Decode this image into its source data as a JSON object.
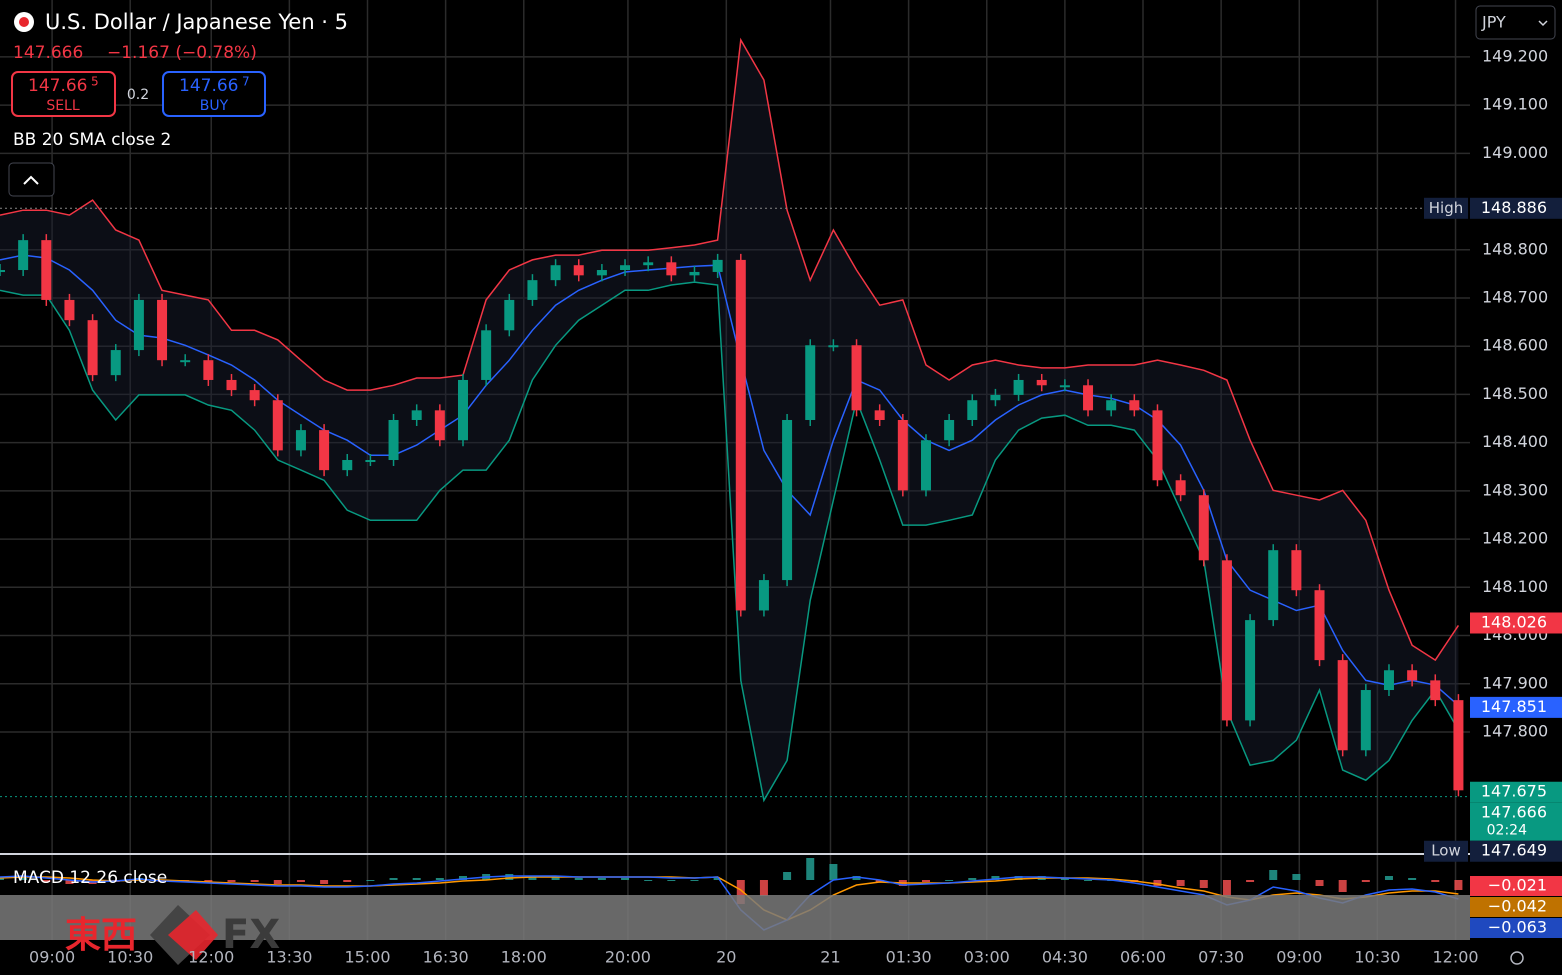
{
  "header": {
    "title": "U.S. Dollar / Japanese Yen · 5",
    "last": "147.666",
    "change": "−1.167 (−0.78%)",
    "sell": {
      "price": "147.66",
      "pip": "5",
      "label": "SELL"
    },
    "spread": "0.2",
    "buy": {
      "price": "147.66",
      "pip": "7",
      "label": "BUY"
    },
    "indicator": "BB 20 SMA close 2",
    "currency": "JPY"
  },
  "chart_data": {
    "type": "candlestick",
    "up_color": "#089981",
    "down_color": "#f23645",
    "grid": true,
    "x": [
      0,
      8,
      16,
      24,
      32,
      40,
      48,
      56,
      64,
      72,
      80,
      88,
      96,
      104,
      112,
      120,
      128,
      136,
      144,
      152,
      160,
      168,
      176,
      184,
      192,
      200,
      208,
      216,
      224,
      232,
      240,
      248,
      256,
      264,
      272,
      280,
      288,
      296,
      304,
      312,
      320,
      328,
      336,
      344,
      352,
      360,
      368,
      376,
      384,
      392,
      400,
      408,
      416,
      424,
      432,
      440,
      448,
      456,
      464,
      472,
      480,
      488,
      496,
      504
    ],
    "close": [
      148.758,
      148.82,
      148.696,
      148.654,
      148.54,
      148.592,
      148.696,
      148.571,
      148.571,
      148.53,
      148.509,
      148.488,
      148.384,
      148.426,
      148.343,
      148.364,
      148.364,
      148.447,
      148.467,
      148.405,
      148.53,
      148.633,
      148.696,
      148.737,
      148.768,
      148.747,
      148.758,
      148.768,
      148.774,
      148.747,
      148.754,
      148.779,
      148.052,
      148.115,
      148.447,
      148.602,
      148.602,
      148.467,
      148.447,
      148.301,
      148.405,
      148.447,
      148.488,
      148.499,
      148.53,
      148.519,
      148.519,
      148.467,
      148.488,
      148.467,
      148.322,
      148.291,
      148.156,
      147.824,
      148.032,
      148.177,
      148.094,
      147.949,
      147.762,
      147.887,
      147.928,
      147.907,
      147.866,
      147.679
    ],
    "bb_upper": [
      148.872,
      148.882,
      148.882,
      148.872,
      148.903,
      148.841,
      148.82,
      148.716,
      148.706,
      148.696,
      148.633,
      148.633,
      148.613,
      148.571,
      148.53,
      148.509,
      148.509,
      148.519,
      148.534,
      148.534,
      148.54,
      148.696,
      148.758,
      148.779,
      148.789,
      148.789,
      148.799,
      148.799,
      148.799,
      148.804,
      148.81,
      148.82,
      149.235,
      149.152,
      148.882,
      148.737,
      148.841,
      148.758,
      148.685,
      148.696,
      148.561,
      148.53,
      148.561,
      148.571,
      148.561,
      148.555,
      148.555,
      148.561,
      148.561,
      148.561,
      148.571,
      148.561,
      148.55,
      148.53,
      148.405,
      148.301,
      148.291,
      148.281,
      148.301,
      148.239,
      148.094,
      147.98,
      147.949,
      148.021
    ],
    "bb_basis": [
      148.779,
      148.789,
      148.783,
      148.758,
      148.716,
      148.654,
      148.623,
      148.617,
      148.602,
      148.582,
      148.561,
      148.53,
      148.488,
      148.457,
      148.426,
      148.405,
      148.374,
      148.374,
      148.395,
      148.426,
      148.457,
      148.519,
      148.571,
      148.633,
      148.685,
      148.716,
      148.737,
      148.754,
      148.758,
      148.762,
      148.766,
      148.768,
      148.571,
      148.384,
      148.301,
      148.25,
      148.405,
      148.53,
      148.509,
      148.447,
      148.405,
      148.384,
      148.405,
      148.447,
      148.478,
      148.499,
      148.509,
      148.499,
      148.492,
      148.478,
      148.447,
      148.395,
      148.301,
      148.156,
      148.094,
      148.073,
      148.052,
      148.063,
      147.969,
      147.907,
      147.897,
      147.907,
      147.897,
      147.855
    ],
    "bb_lower": [
      148.716,
      148.706,
      148.706,
      148.633,
      148.509,
      148.447,
      148.499,
      148.499,
      148.499,
      148.478,
      148.467,
      148.426,
      148.364,
      148.343,
      148.322,
      148.26,
      148.239,
      148.239,
      148.239,
      148.301,
      148.343,
      148.343,
      148.405,
      148.53,
      148.602,
      148.654,
      148.685,
      148.716,
      148.716,
      148.727,
      148.733,
      148.727,
      147.907,
      147.658,
      147.741,
      148.073,
      148.281,
      148.488,
      148.364,
      148.229,
      148.229,
      148.239,
      148.25,
      148.364,
      148.426,
      148.451,
      148.457,
      148.436,
      148.436,
      148.426,
      148.364,
      148.26,
      148.156,
      147.845,
      147.731,
      147.741,
      147.783,
      147.887,
      147.721,
      147.7,
      147.741,
      147.824,
      147.887,
      147.804
    ],
    "upper_color": "#f23645",
    "basis_color": "#2962ff",
    "lower_color": "#089981",
    "xlim": [
      0,
      508
    ],
    "ylim": [
      147.549,
      149.318
    ],
    "yticks": [
      {
        "value": 149.2,
        "label": "149.200"
      },
      {
        "value": 149.1,
        "label": "149.100"
      },
      {
        "value": 149.0,
        "label": "149.000"
      },
      {
        "value": 148.8,
        "label": "148.800"
      },
      {
        "value": 148.7,
        "label": "148.700"
      },
      {
        "value": 148.6,
        "label": "148.600"
      },
      {
        "value": 148.5,
        "label": "148.500"
      },
      {
        "value": 148.4,
        "label": "148.400"
      },
      {
        "value": 148.3,
        "label": "148.300"
      },
      {
        "value": 148.2,
        "label": "148.200"
      },
      {
        "value": 148.1,
        "label": "148.100"
      },
      {
        "value": 148.0,
        "label": "148.000"
      },
      {
        "value": 147.9,
        "label": "147.900"
      },
      {
        "value": 147.8,
        "label": "147.800"
      }
    ],
    "xticks": [
      {
        "value": 18,
        "label": "09:00"
      },
      {
        "value": 45,
        "label": "10:30"
      },
      {
        "value": 73,
        "label": "12:00"
      },
      {
        "value": 100,
        "label": "13:30"
      },
      {
        "value": 127,
        "label": "15:00"
      },
      {
        "value": 154,
        "label": "16:30"
      },
      {
        "value": 181,
        "label": "18:00"
      },
      {
        "value": 217,
        "label": "20:00"
      },
      {
        "value": 251,
        "label": "20"
      },
      {
        "value": 287,
        "label": "21"
      },
      {
        "value": 314,
        "label": "01:30"
      },
      {
        "value": 341,
        "label": "03:00"
      },
      {
        "value": 368,
        "label": "04:30"
      },
      {
        "value": 395,
        "label": "06:00"
      },
      {
        "value": 422,
        "label": "07:30"
      },
      {
        "value": 449,
        "label": "09:00"
      },
      {
        "value": 476,
        "label": "10:30"
      },
      {
        "value": 503,
        "label": "12:00"
      }
    ],
    "price_tags": [
      {
        "name": "High",
        "value": 148.886,
        "label": "148.886",
        "color": "#131f3c"
      },
      {
        "value": 148.026,
        "label": "148.026",
        "color": "#f23645"
      },
      {
        "value": 147.851,
        "label": "147.851",
        "color": "#2962ff"
      },
      {
        "value": 147.675,
        "label": "147.675",
        "color": "#089981"
      },
      {
        "value": 147.666,
        "label": "147.666",
        "color": "#089981",
        "countdown": "02:24"
      },
      {
        "name": "Low",
        "value": 147.649,
        "label": "147.649",
        "color": "#131f3c"
      }
    ],
    "macd": {
      "title": "MACD 12 26 close",
      "ylim": [
        -0.075,
        0.01
      ],
      "histogram_ylim": [
        -0.03,
        0.0125
      ],
      "histogram": [
        0.001,
        0.001,
        -0.001,
        -0.002,
        -0.002,
        -0.001,
        0.001,
        -0.001,
        -0.001,
        -0.001,
        -0.001,
        -0.001,
        -0.002,
        -0.001,
        -0.002,
        -0.001,
        0,
        0.001,
        0.001,
        0.001,
        0.002,
        0.003,
        0.003,
        0.002,
        0.002,
        0.001,
        0.001,
        0.001,
        0,
        0,
        0,
        0.001,
        -0.012,
        -0.008,
        0.004,
        0.011,
        0.008,
        0.002,
        -0.001,
        -0.003,
        -0.001,
        0,
        0.001,
        0.002,
        0.002,
        0.002,
        0.001,
        0,
        0,
        -0.001,
        -0.003,
        -0.003,
        -0.004,
        -0.008,
        -0.001,
        0.005,
        0.003,
        -0.003,
        -0.006,
        -0.001,
        0.002,
        0.001,
        -0.001,
        -0.005
      ],
      "macd_line": [
        -0.012,
        -0.011,
        -0.013,
        -0.015,
        -0.017,
        -0.016,
        -0.014,
        -0.016,
        -0.017,
        -0.018,
        -0.019,
        -0.02,
        -0.021,
        -0.021,
        -0.022,
        -0.022,
        -0.021,
        -0.019,
        -0.018,
        -0.016,
        -0.014,
        -0.012,
        -0.011,
        -0.011,
        -0.011,
        -0.012,
        -0.012,
        -0.012,
        -0.012,
        -0.013,
        -0.013,
        -0.012,
        -0.045,
        -0.065,
        -0.055,
        -0.03,
        -0.015,
        -0.012,
        -0.015,
        -0.02,
        -0.019,
        -0.018,
        -0.016,
        -0.014,
        -0.012,
        -0.012,
        -0.013,
        -0.014,
        -0.015,
        -0.018,
        -0.022,
        -0.026,
        -0.03,
        -0.04,
        -0.035,
        -0.022,
        -0.026,
        -0.033,
        -0.038,
        -0.03,
        -0.025,
        -0.024,
        -0.027,
        -0.034
      ],
      "signal_line": [
        -0.013,
        -0.012,
        -0.012,
        -0.013,
        -0.015,
        -0.016,
        -0.015,
        -0.015,
        -0.016,
        -0.017,
        -0.018,
        -0.019,
        -0.02,
        -0.02,
        -0.021,
        -0.021,
        -0.021,
        -0.02,
        -0.019,
        -0.018,
        -0.016,
        -0.015,
        -0.013,
        -0.012,
        -0.012,
        -0.012,
        -0.012,
        -0.012,
        -0.012,
        -0.012,
        -0.013,
        -0.012,
        -0.025,
        -0.045,
        -0.055,
        -0.045,
        -0.03,
        -0.02,
        -0.017,
        -0.018,
        -0.018,
        -0.018,
        -0.017,
        -0.016,
        -0.014,
        -0.013,
        -0.013,
        -0.013,
        -0.014,
        -0.016,
        -0.019,
        -0.023,
        -0.026,
        -0.032,
        -0.035,
        -0.03,
        -0.028,
        -0.03,
        -0.034,
        -0.032,
        -0.028,
        -0.026,
        -0.026,
        -0.029
      ],
      "macd_color": "#2962ff",
      "signal_color": "#ff9800",
      "tags": [
        {
          "value": -0.021,
          "label": "−0.021",
          "color": "#f23645"
        },
        {
          "value": -0.042,
          "label": "−0.042",
          "color": "#ff9800"
        },
        {
          "value": -0.063,
          "label": "−0.063",
          "color": "#2962ff"
        }
      ]
    }
  },
  "watermark": {
    "left": "東西",
    "right": "FX"
  }
}
